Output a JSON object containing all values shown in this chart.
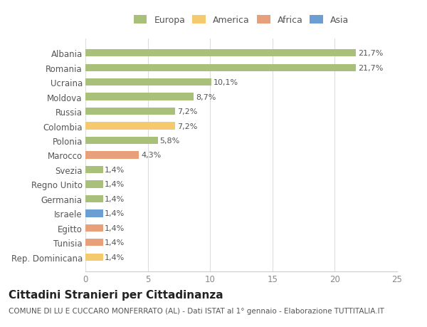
{
  "countries": [
    "Albania",
    "Romania",
    "Ucraina",
    "Moldova",
    "Russia",
    "Colombia",
    "Polonia",
    "Marocco",
    "Svezia",
    "Regno Unito",
    "Germania",
    "Israele",
    "Egitto",
    "Tunisia",
    "Rep. Dominicana"
  ],
  "values": [
    21.7,
    21.7,
    10.1,
    8.7,
    7.2,
    7.2,
    5.8,
    4.3,
    1.4,
    1.4,
    1.4,
    1.4,
    1.4,
    1.4,
    1.4
  ],
  "labels": [
    "21,7%",
    "21,7%",
    "10,1%",
    "8,7%",
    "7,2%",
    "7,2%",
    "5,8%",
    "4,3%",
    "1,4%",
    "1,4%",
    "1,4%",
    "1,4%",
    "1,4%",
    "1,4%",
    "1,4%"
  ],
  "continents": [
    "Europa",
    "Europa",
    "Europa",
    "Europa",
    "Europa",
    "America",
    "Europa",
    "Africa",
    "Europa",
    "Europa",
    "Europa",
    "Asia",
    "Africa",
    "Africa",
    "America"
  ],
  "colors": {
    "Europa": "#a8c07a",
    "America": "#f5c96e",
    "Africa": "#e8a07a",
    "Asia": "#6b9fd4"
  },
  "legend_order": [
    "Europa",
    "America",
    "Africa",
    "Asia"
  ],
  "xlim": [
    0,
    25
  ],
  "xticks": [
    0,
    5,
    10,
    15,
    20,
    25
  ],
  "title": "Cittadini Stranieri per Cittadinanza",
  "subtitle": "COMUNE DI LU E CUCCARO MONFERRATO (AL) - Dati ISTAT al 1° gennaio - Elaborazione TUTTITALIA.IT",
  "background_color": "#ffffff",
  "bar_height": 0.5,
  "label_fontsize": 8,
  "ytick_fontsize": 8.5,
  "xtick_fontsize": 8.5,
  "title_fontsize": 11,
  "subtitle_fontsize": 7.5
}
